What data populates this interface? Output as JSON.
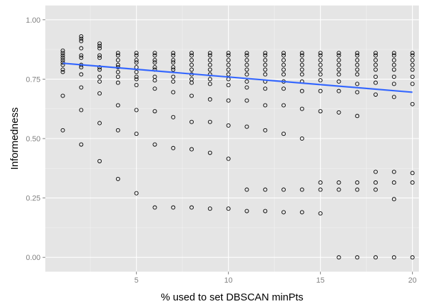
{
  "chart_data": {
    "type": "scatter",
    "title": "",
    "xlabel": "% used to set DBSCAN minPts",
    "ylabel": "Informedness",
    "xlim": [
      0.05,
      20.35
    ],
    "ylim": [
      -0.06,
      1.06
    ],
    "x_ticks": [
      5,
      10,
      15,
      20
    ],
    "y_ticks": [
      0.0,
      0.25,
      0.5,
      0.75,
      1.0
    ],
    "x_tick_labels": [
      "5",
      "10",
      "15",
      "20"
    ],
    "y_tick_labels": [
      "0.00",
      "0.25",
      "0.50",
      "0.75",
      "1.00"
    ],
    "grid": true,
    "background": "#e5e5e5",
    "grid_color": "#ffffff",
    "point_color": "#000000",
    "trend_color": "#3366ff",
    "points": [
      [
        1,
        0.87
      ],
      [
        1,
        0.86
      ],
      [
        1,
        0.85
      ],
      [
        1,
        0.84
      ],
      [
        1,
        0.83
      ],
      [
        1,
        0.82
      ],
      [
        1,
        0.81
      ],
      [
        1,
        0.79
      ],
      [
        1,
        0.78
      ],
      [
        1,
        0.68
      ],
      [
        1,
        0.535
      ],
      [
        2,
        0.93
      ],
      [
        2,
        0.92
      ],
      [
        2,
        0.91
      ],
      [
        2,
        0.88
      ],
      [
        2,
        0.85
      ],
      [
        2,
        0.84
      ],
      [
        2,
        0.81
      ],
      [
        2,
        0.8
      ],
      [
        2,
        0.77
      ],
      [
        2,
        0.715
      ],
      [
        2,
        0.62
      ],
      [
        2,
        0.475
      ],
      [
        3,
        0.9
      ],
      [
        3,
        0.89
      ],
      [
        3,
        0.88
      ],
      [
        3,
        0.85
      ],
      [
        3,
        0.84
      ],
      [
        3,
        0.8
      ],
      [
        3,
        0.79
      ],
      [
        3,
        0.76
      ],
      [
        3,
        0.74
      ],
      [
        3,
        0.69
      ],
      [
        3,
        0.565
      ],
      [
        3,
        0.405
      ],
      [
        4,
        0.86
      ],
      [
        4,
        0.85
      ],
      [
        4,
        0.83
      ],
      [
        4,
        0.81
      ],
      [
        4,
        0.8
      ],
      [
        4,
        0.78
      ],
      [
        4,
        0.76
      ],
      [
        4,
        0.735
      ],
      [
        4,
        0.64
      ],
      [
        4,
        0.535
      ],
      [
        4,
        0.33
      ],
      [
        5,
        0.86
      ],
      [
        5,
        0.85
      ],
      [
        5,
        0.83
      ],
      [
        5,
        0.82
      ],
      [
        5,
        0.8
      ],
      [
        5,
        0.78
      ],
      [
        5,
        0.76
      ],
      [
        5,
        0.75
      ],
      [
        5,
        0.725
      ],
      [
        5,
        0.62
      ],
      [
        5,
        0.52
      ],
      [
        5,
        0.27
      ],
      [
        6,
        0.86
      ],
      [
        6,
        0.85
      ],
      [
        6,
        0.83
      ],
      [
        6,
        0.82
      ],
      [
        6,
        0.8
      ],
      [
        6,
        0.79
      ],
      [
        6,
        0.76
      ],
      [
        6,
        0.745
      ],
      [
        6,
        0.71
      ],
      [
        6,
        0.615
      ],
      [
        6,
        0.475
      ],
      [
        6,
        0.21
      ],
      [
        7,
        0.86
      ],
      [
        7,
        0.85
      ],
      [
        7,
        0.83
      ],
      [
        7,
        0.82
      ],
      [
        7,
        0.8
      ],
      [
        7,
        0.79
      ],
      [
        7,
        0.76
      ],
      [
        7,
        0.74
      ],
      [
        7,
        0.695
      ],
      [
        7,
        0.59
      ],
      [
        7,
        0.46
      ],
      [
        7,
        0.21
      ],
      [
        8,
        0.86
      ],
      [
        8,
        0.85
      ],
      [
        8,
        0.83
      ],
      [
        8,
        0.81
      ],
      [
        8,
        0.79
      ],
      [
        8,
        0.77
      ],
      [
        8,
        0.75
      ],
      [
        8,
        0.735
      ],
      [
        8,
        0.68
      ],
      [
        8,
        0.57
      ],
      [
        8,
        0.455
      ],
      [
        8,
        0.21
      ],
      [
        9,
        0.86
      ],
      [
        9,
        0.85
      ],
      [
        9,
        0.83
      ],
      [
        9,
        0.81
      ],
      [
        9,
        0.79
      ],
      [
        9,
        0.77
      ],
      [
        9,
        0.75
      ],
      [
        9,
        0.73
      ],
      [
        9,
        0.665
      ],
      [
        9,
        0.57
      ],
      [
        9,
        0.44
      ],
      [
        9,
        0.205
      ],
      [
        10,
        0.86
      ],
      [
        10,
        0.85
      ],
      [
        10,
        0.83
      ],
      [
        10,
        0.81
      ],
      [
        10,
        0.79
      ],
      [
        10,
        0.77
      ],
      [
        10,
        0.75
      ],
      [
        10,
        0.725
      ],
      [
        10,
        0.66
      ],
      [
        10,
        0.555
      ],
      [
        10,
        0.415
      ],
      [
        10,
        0.205
      ],
      [
        11,
        0.86
      ],
      [
        11,
        0.85
      ],
      [
        11,
        0.83
      ],
      [
        11,
        0.81
      ],
      [
        11,
        0.79
      ],
      [
        11,
        0.77
      ],
      [
        11,
        0.74
      ],
      [
        11,
        0.715
      ],
      [
        11,
        0.66
      ],
      [
        11,
        0.55
      ],
      [
        11,
        0.285
      ],
      [
        11,
        0.195
      ],
      [
        12,
        0.86
      ],
      [
        12,
        0.85
      ],
      [
        12,
        0.83
      ],
      [
        12,
        0.81
      ],
      [
        12,
        0.79
      ],
      [
        12,
        0.77
      ],
      [
        12,
        0.74
      ],
      [
        12,
        0.71
      ],
      [
        12,
        0.64
      ],
      [
        12,
        0.535
      ],
      [
        12,
        0.285
      ],
      [
        12,
        0.195
      ],
      [
        13,
        0.86
      ],
      [
        13,
        0.85
      ],
      [
        13,
        0.83
      ],
      [
        13,
        0.81
      ],
      [
        13,
        0.79
      ],
      [
        13,
        0.77
      ],
      [
        13,
        0.74
      ],
      [
        13,
        0.71
      ],
      [
        13,
        0.64
      ],
      [
        13,
        0.52
      ],
      [
        13,
        0.285
      ],
      [
        13,
        0.19
      ],
      [
        14,
        0.86
      ],
      [
        14,
        0.85
      ],
      [
        14,
        0.83
      ],
      [
        14,
        0.81
      ],
      [
        14,
        0.79
      ],
      [
        14,
        0.77
      ],
      [
        14,
        0.74
      ],
      [
        14,
        0.7
      ],
      [
        14,
        0.625
      ],
      [
        14,
        0.5
      ],
      [
        14,
        0.285
      ],
      [
        14,
        0.19
      ],
      [
        15,
        0.86
      ],
      [
        15,
        0.85
      ],
      [
        15,
        0.83
      ],
      [
        15,
        0.81
      ],
      [
        15,
        0.79
      ],
      [
        15,
        0.77
      ],
      [
        15,
        0.745
      ],
      [
        15,
        0.7
      ],
      [
        15,
        0.615
      ],
      [
        15,
        0.315
      ],
      [
        15,
        0.285
      ],
      [
        15,
        0.185
      ],
      [
        16,
        0.86
      ],
      [
        16,
        0.85
      ],
      [
        16,
        0.83
      ],
      [
        16,
        0.81
      ],
      [
        16,
        0.79
      ],
      [
        16,
        0.77
      ],
      [
        16,
        0.74
      ],
      [
        16,
        0.7
      ],
      [
        16,
        0.61
      ],
      [
        16,
        0.315
      ],
      [
        16,
        0.285
      ],
      [
        16,
        0.0
      ],
      [
        17,
        0.86
      ],
      [
        17,
        0.85
      ],
      [
        17,
        0.83
      ],
      [
        17,
        0.81
      ],
      [
        17,
        0.79
      ],
      [
        17,
        0.77
      ],
      [
        17,
        0.73
      ],
      [
        17,
        0.695
      ],
      [
        17,
        0.595
      ],
      [
        17,
        0.315
      ],
      [
        17,
        0.285
      ],
      [
        17,
        0.0
      ],
      [
        18,
        0.86
      ],
      [
        18,
        0.85
      ],
      [
        18,
        0.83
      ],
      [
        18,
        0.81
      ],
      [
        18,
        0.79
      ],
      [
        18,
        0.76
      ],
      [
        18,
        0.735
      ],
      [
        18,
        0.685
      ],
      [
        18,
        0.36
      ],
      [
        18,
        0.315
      ],
      [
        18,
        0.285
      ],
      [
        18,
        0.0
      ],
      [
        19,
        0.86
      ],
      [
        19,
        0.85
      ],
      [
        19,
        0.83
      ],
      [
        19,
        0.81
      ],
      [
        19,
        0.79
      ],
      [
        19,
        0.76
      ],
      [
        19,
        0.73
      ],
      [
        19,
        0.675
      ],
      [
        19,
        0.36
      ],
      [
        19,
        0.315
      ],
      [
        19,
        0.245
      ],
      [
        19,
        0.0
      ],
      [
        20,
        0.86
      ],
      [
        20,
        0.85
      ],
      [
        20,
        0.83
      ],
      [
        20,
        0.81
      ],
      [
        20,
        0.79
      ],
      [
        20,
        0.76
      ],
      [
        20,
        0.73
      ],
      [
        20,
        0.645
      ],
      [
        20,
        0.355
      ],
      [
        20,
        0.315
      ],
      [
        20,
        0.0
      ]
    ],
    "trend_line": [
      [
        1,
        0.817
      ],
      [
        20,
        0.695
      ]
    ]
  }
}
